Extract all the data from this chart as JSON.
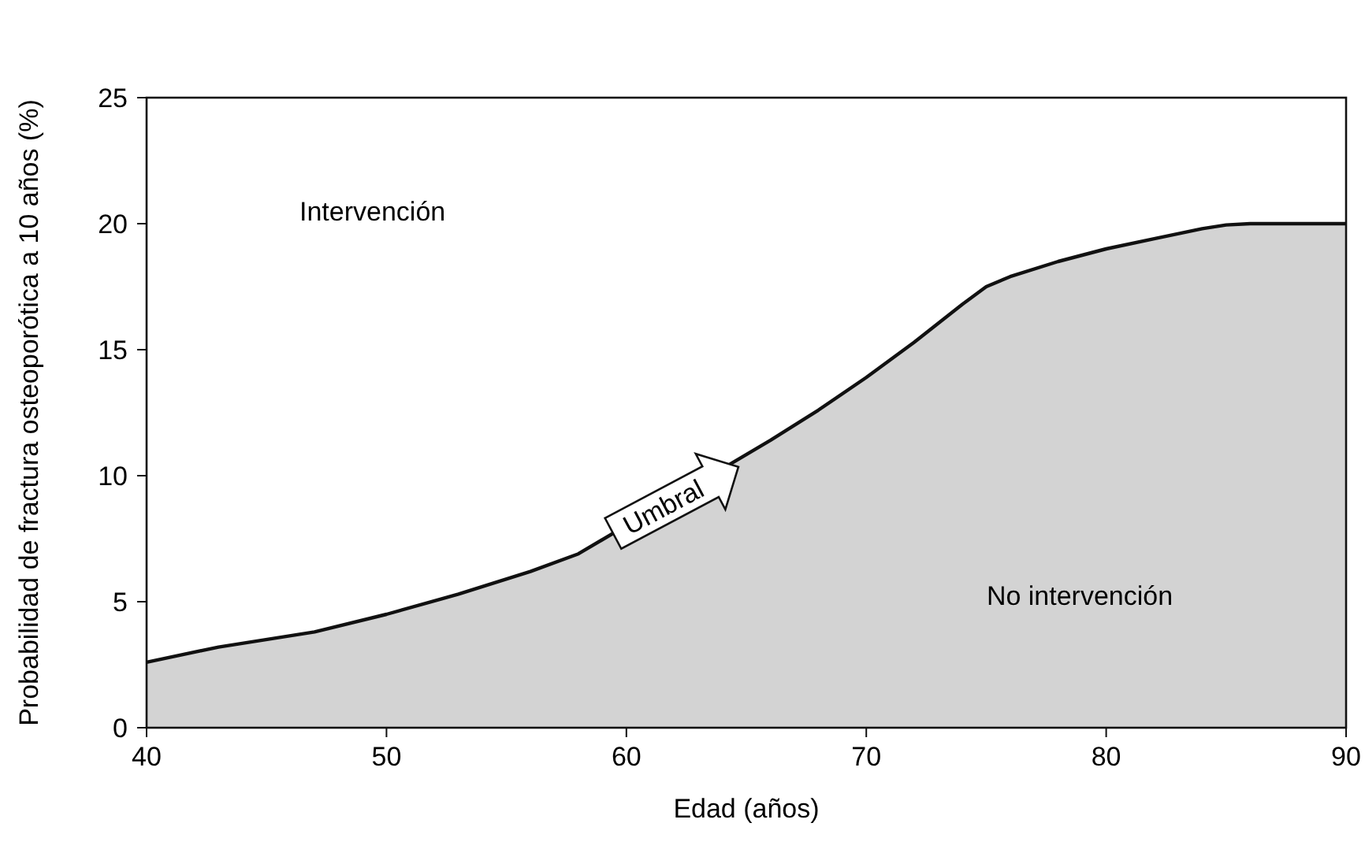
{
  "chart_data": {
    "type": "area",
    "xlabel": "Edad (años)",
    "ylabel": "Probabilidad de fractura osteoporótica a 10 años (%)",
    "x": [
      40,
      43,
      47,
      50,
      53,
      56,
      58,
      66,
      68,
      70,
      72,
      74,
      75,
      76,
      78,
      80,
      82,
      84,
      85,
      86,
      87,
      90
    ],
    "series": [
      {
        "color": "#d3d3d3",
        "values": [
          2.6,
          3.2,
          3.8,
          4.5,
          5.3,
          6.2,
          6.9,
          11.4,
          12.6,
          13.9,
          15.3,
          16.8,
          17.5,
          17.9,
          18.5,
          19.0,
          19.4,
          19.8,
          19.95,
          20,
          20,
          20
        ]
      }
    ],
    "xlim": [
      40,
      90
    ],
    "xticks": [
      40,
      50,
      60,
      70,
      80,
      90
    ],
    "ylim": [
      0,
      25
    ],
    "yticks": [
      0,
      5,
      10,
      15,
      20,
      25
    ],
    "grid": false,
    "annotations": [
      "Intervención",
      "No intervención",
      {
        "text": "Umbral",
        "x": 62,
        "y": 9
      }
    ]
  }
}
